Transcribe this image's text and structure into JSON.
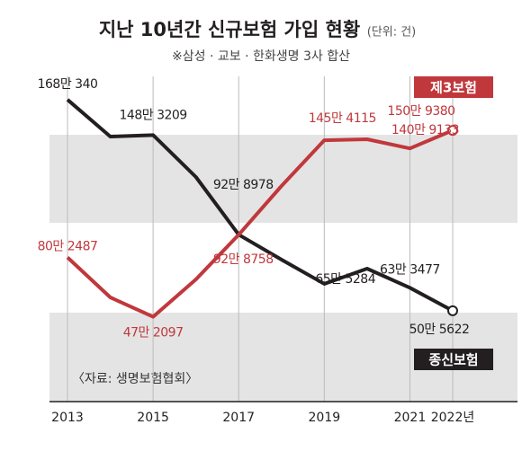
{
  "chart_data": {
    "type": "line",
    "title": "지난 10년간 신규보험 가입 현황",
    "unit": "(단위: 건)",
    "subtitle": "※삼성 · 교보 · 한화생명 3사 합산",
    "source": "〈자료: 생명보험협회〉",
    "x": [
      2013,
      2014,
      2015,
      2016,
      2017,
      2018,
      2019,
      2020,
      2021,
      2022
    ],
    "xlim": [
      2013,
      2022
    ],
    "xticks": [
      2013,
      2015,
      2017,
      2019,
      2021,
      {
        "value": 2022,
        "label": "2022년"
      }
    ],
    "ylim": [
      0,
      2000000
    ],
    "series": [
      {
        "name": "종신보험",
        "color": "#231f20",
        "values": [
          1680340,
          1475000,
          1483209,
          1250000,
          928978,
          790000,
          655284,
          740000,
          633477,
          505622
        ],
        "value_labels": [
          "168만 340",
          null,
          "148만 3209",
          null,
          "92만 8978",
          null,
          "65만 5284",
          null,
          "63만 3477",
          "50만 5622"
        ]
      },
      {
        "name": "제3보험",
        "color": "#c0383c",
        "values": [
          802487,
          580000,
          472097,
          680000,
          928758,
          1200000,
          1454115,
          1460000,
          1409133,
          1509380
        ],
        "value_labels": [
          "80만 2487",
          null,
          "47만 2097",
          null,
          "92만 8758",
          null,
          "145만 4115",
          null,
          "140만 9133",
          "150만 9380"
        ]
      }
    ]
  }
}
